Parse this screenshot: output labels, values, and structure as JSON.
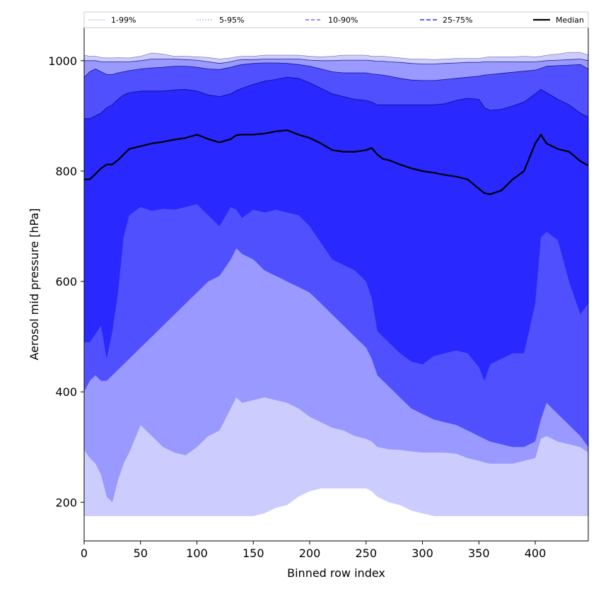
{
  "chart_data": {
    "type": "area",
    "title": "",
    "xlabel": "Binned row index",
    "ylabel": "Aerosol mid pressure [hPa]",
    "xlim": [
      0,
      447
    ],
    "ylim": [
      130,
      1060
    ],
    "x_ticks": [
      0,
      50,
      100,
      150,
      200,
      250,
      300,
      350,
      400
    ],
    "y_ticks": [
      200,
      400,
      600,
      800,
      1000
    ],
    "legend_position": "top",
    "x": [
      0,
      5,
      10,
      15,
      20,
      25,
      30,
      35,
      40,
      50,
      60,
      70,
      80,
      90,
      100,
      110,
      120,
      130,
      135,
      140,
      150,
      160,
      170,
      180,
      190,
      200,
      210,
      220,
      230,
      240,
      250,
      255,
      260,
      265,
      270,
      280,
      290,
      300,
      310,
      320,
      330,
      340,
      350,
      355,
      360,
      370,
      380,
      390,
      400,
      405,
      410,
      420,
      430,
      440,
      447
    ],
    "bands": [
      {
        "name": "1-99%",
        "color": "#ccccff",
        "lower": [
          175,
          175,
          175,
          175,
          175,
          175,
          175,
          175,
          175,
          175,
          175,
          175,
          175,
          175,
          175,
          175,
          175,
          175,
          175,
          175,
          175,
          180,
          190,
          195,
          210,
          220,
          225,
          225,
          225,
          225,
          225,
          220,
          210,
          205,
          200,
          195,
          185,
          180,
          175,
          175,
          175,
          175,
          175,
          175,
          175,
          175,
          175,
          175,
          175,
          175,
          175,
          175,
          175,
          175,
          175
        ],
        "upper": [
          1010,
          1008,
          1008,
          1006,
          1005,
          1005,
          1006,
          1005,
          1005,
          1008,
          1014,
          1012,
          1008,
          1008,
          1007,
          1006,
          1003,
          1005,
          1007,
          1008,
          1008,
          1010,
          1010,
          1010,
          1010,
          1008,
          1007,
          1008,
          1010,
          1010,
          1010,
          1008,
          1008,
          1008,
          1007,
          1005,
          1003,
          1003,
          1002,
          1003,
          1004,
          1004,
          1004,
          1006,
          1007,
          1007,
          1007,
          1008,
          1007,
          1008,
          1010,
          1012,
          1015,
          1015,
          1010
        ]
      },
      {
        "name": "5-95%",
        "color": "#9999ff",
        "lower": [
          295,
          280,
          270,
          250,
          210,
          200,
          240,
          270,
          290,
          340,
          320,
          300,
          290,
          285,
          300,
          320,
          330,
          370,
          390,
          380,
          385,
          390,
          385,
          380,
          370,
          355,
          345,
          335,
          330,
          320,
          315,
          310,
          300,
          298,
          296,
          295,
          292,
          290,
          290,
          290,
          288,
          280,
          275,
          272,
          270,
          270,
          270,
          275,
          280,
          315,
          320,
          310,
          305,
          300,
          290
        ],
        "upper": [
          1000,
          1000,
          1000,
          998,
          998,
          998,
          998,
          998,
          998,
          1000,
          1003,
          1003,
          1003,
          1002,
          1001,
          998,
          995,
          998,
          1001,
          1002,
          1002,
          1003,
          1003,
          1003,
          1003,
          1001,
          1000,
          1000,
          1001,
          1001,
          1001,
          1000,
          999,
          999,
          998,
          997,
          995,
          994,
          994,
          995,
          996,
          997,
          997,
          998,
          998,
          998,
          998,
          998,
          998,
          999,
          1000,
          1001,
          1002,
          1003,
          1000
        ]
      },
      {
        "name": "10-90%",
        "color": "#5050ff",
        "lower": [
          400,
          420,
          430,
          420,
          420,
          430,
          440,
          450,
          460,
          480,
          500,
          520,
          540,
          560,
          580,
          600,
          610,
          640,
          660,
          650,
          640,
          620,
          610,
          600,
          590,
          580,
          560,
          540,
          520,
          500,
          480,
          460,
          430,
          420,
          410,
          390,
          370,
          360,
          350,
          345,
          340,
          330,
          320,
          315,
          310,
          305,
          300,
          300,
          310,
          350,
          380,
          360,
          340,
          320,
          300
        ],
        "upper": [
          970,
          980,
          985,
          980,
          975,
          975,
          978,
          980,
          982,
          985,
          987,
          988,
          990,
          990,
          988,
          985,
          984,
          988,
          991,
          993,
          995,
          996,
          996,
          995,
          993,
          990,
          985,
          980,
          978,
          978,
          978,
          976,
          975,
          974,
          972,
          968,
          965,
          964,
          964,
          966,
          968,
          970,
          972,
          974,
          975,
          977,
          979,
          981,
          983,
          986,
          990,
          991,
          992,
          993,
          985
        ]
      },
      {
        "name": "25-75%",
        "color": "#2828ff",
        "lower": [
          490,
          490,
          505,
          520,
          460,
          510,
          580,
          680,
          720,
          735,
          728,
          732,
          730,
          735,
          740,
          720,
          700,
          735,
          730,
          715,
          730,
          725,
          730,
          725,
          720,
          700,
          670,
          640,
          630,
          620,
          600,
          570,
          510,
          500,
          490,
          470,
          455,
          450,
          465,
          470,
          475,
          470,
          445,
          420,
          450,
          460,
          470,
          470,
          560,
          680,
          690,
          675,
          600,
          540,
          560
        ],
        "upper": [
          895,
          895,
          900,
          905,
          915,
          920,
          930,
          938,
          942,
          945,
          945,
          945,
          947,
          948,
          945,
          938,
          935,
          940,
          946,
          950,
          957,
          963,
          966,
          970,
          968,
          960,
          950,
          940,
          935,
          930,
          928,
          925,
          920,
          920,
          920,
          920,
          920,
          920,
          920,
          922,
          928,
          932,
          930,
          915,
          910,
          912,
          918,
          925,
          940,
          948,
          942,
          930,
          920,
          905,
          898
        ]
      }
    ],
    "series": [
      {
        "name": "Median",
        "color": "#000000",
        "values": [
          785,
          785,
          795,
          805,
          812,
          812,
          820,
          830,
          840,
          845,
          850,
          853,
          857,
          860,
          866,
          858,
          852,
          858,
          865,
          866,
          866,
          868,
          872,
          874,
          866,
          860,
          850,
          838,
          835,
          835,
          838,
          842,
          830,
          822,
          820,
          812,
          805,
          800,
          797,
          793,
          790,
          785,
          768,
          760,
          758,
          765,
          785,
          800,
          850,
          866,
          850,
          840,
          835,
          818,
          810
        ]
      }
    ],
    "legend": [
      "1-99%",
      "5-95%",
      "10-90%",
      "25-75%",
      "Median"
    ]
  }
}
